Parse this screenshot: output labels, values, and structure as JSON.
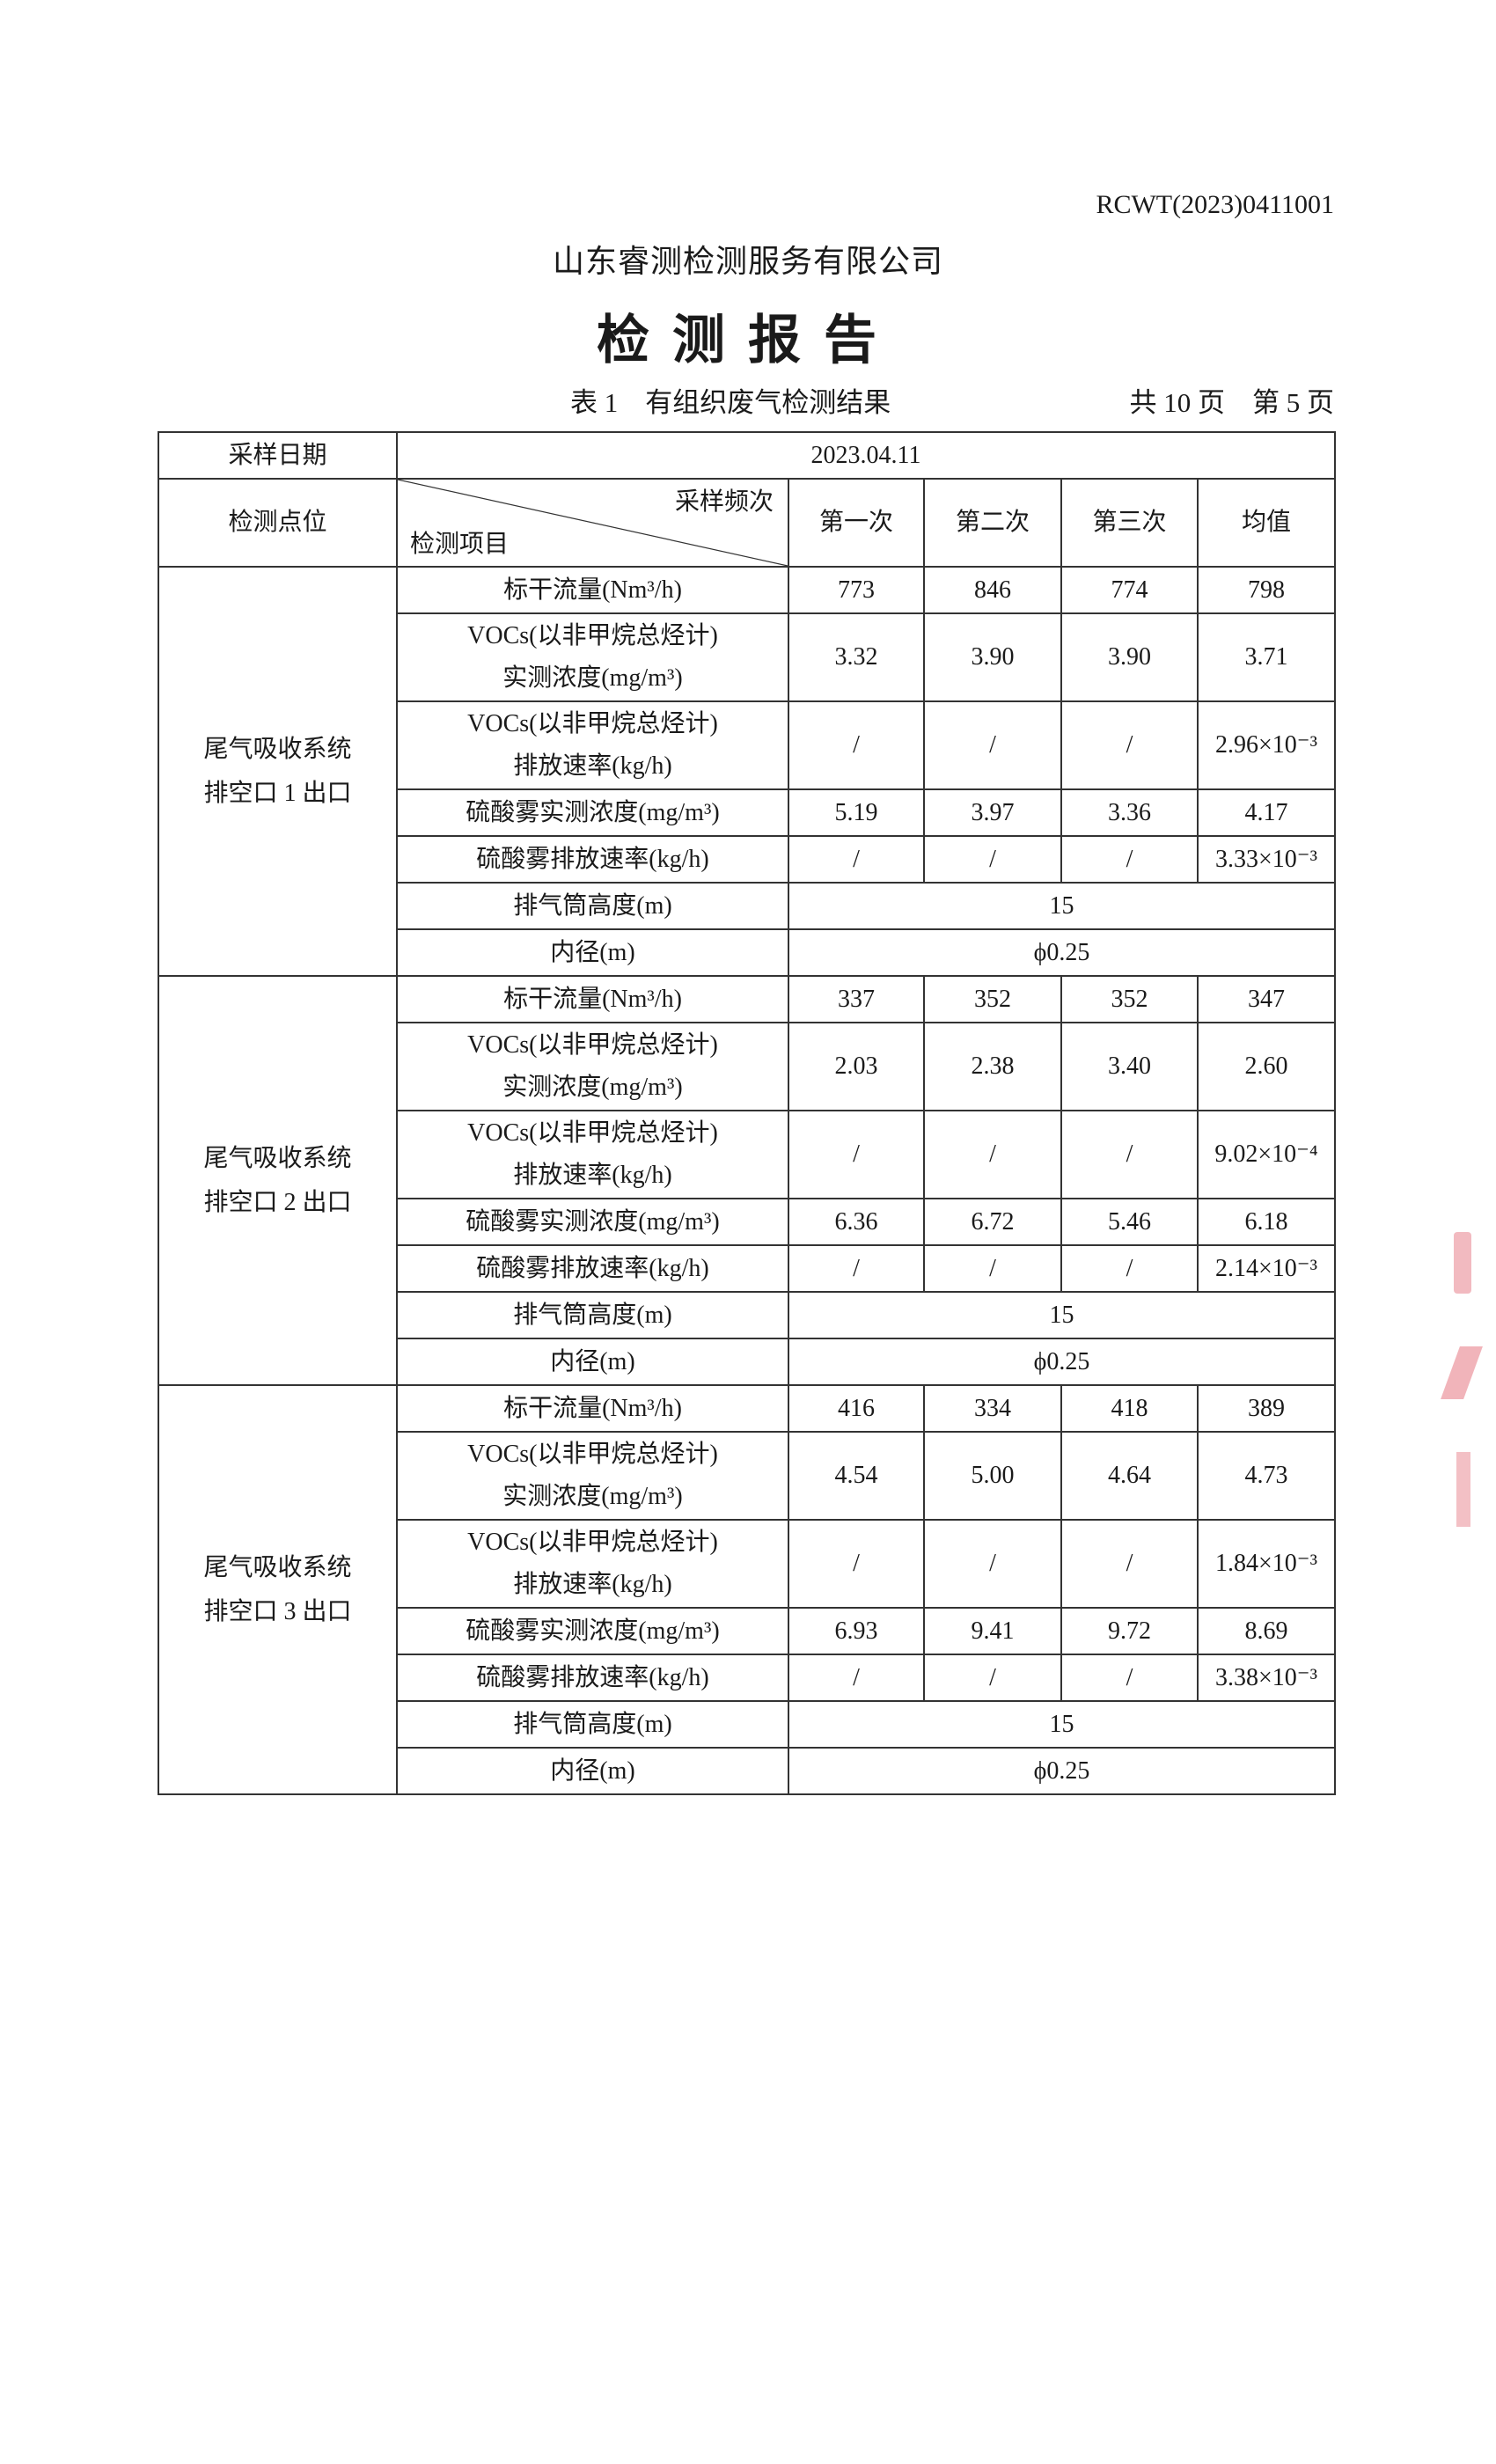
{
  "header": {
    "report_no": "RCWT(2023)0411001",
    "company": "山东睿测检测服务有限公司",
    "title": "检测报告",
    "caption": "表 1　有组织废气检测结果",
    "pages": "共 10 页　第 5 页"
  },
  "table": {
    "date_label": "采样日期",
    "date_value": "2023.04.11",
    "point_label": "检测点位",
    "freq_label": "采样频次",
    "item_label": "检测项目",
    "columns": [
      "第一次",
      "第二次",
      "第三次",
      "均值"
    ],
    "blocks": [
      {
        "point": [
          "尾气吸收系统",
          "排空口 1 出口"
        ],
        "rows": [
          {
            "item": [
              "标干流量(Nm³/h)"
            ],
            "values": [
              "773",
              "846",
              "774",
              "798"
            ]
          },
          {
            "item": [
              "VOCs(以非甲烷总烃计)",
              "实测浓度(mg/m³)"
            ],
            "values": [
              "3.32",
              "3.90",
              "3.90",
              "3.71"
            ]
          },
          {
            "item": [
              "VOCs(以非甲烷总烃计)",
              "排放速率(kg/h)"
            ],
            "values": [
              "/",
              "/",
              "/",
              "2.96×10⁻³"
            ]
          },
          {
            "item": [
              "硫酸雾实测浓度(mg/m³)"
            ],
            "values": [
              "5.19",
              "3.97",
              "3.36",
              "4.17"
            ]
          },
          {
            "item": [
              "硫酸雾排放速率(kg/h)"
            ],
            "values": [
              "/",
              "/",
              "/",
              "3.33×10⁻³"
            ]
          },
          {
            "item": [
              "排气筒高度(m)"
            ],
            "merged": "15"
          },
          {
            "item": [
              "内径(m)"
            ],
            "merged": "ϕ0.25"
          }
        ]
      },
      {
        "point": [
          "尾气吸收系统",
          "排空口 2 出口"
        ],
        "rows": [
          {
            "item": [
              "标干流量(Nm³/h)"
            ],
            "values": [
              "337",
              "352",
              "352",
              "347"
            ]
          },
          {
            "item": [
              "VOCs(以非甲烷总烃计)",
              "实测浓度(mg/m³)"
            ],
            "values": [
              "2.03",
              "2.38",
              "3.40",
              "2.60"
            ]
          },
          {
            "item": [
              "VOCs(以非甲烷总烃计)",
              "排放速率(kg/h)"
            ],
            "values": [
              "/",
              "/",
              "/",
              "9.02×10⁻⁴"
            ]
          },
          {
            "item": [
              "硫酸雾实测浓度(mg/m³)"
            ],
            "values": [
              "6.36",
              "6.72",
              "5.46",
              "6.18"
            ]
          },
          {
            "item": [
              "硫酸雾排放速率(kg/h)"
            ],
            "values": [
              "/",
              "/",
              "/",
              "2.14×10⁻³"
            ]
          },
          {
            "item": [
              "排气筒高度(m)"
            ],
            "merged": "15"
          },
          {
            "item": [
              "内径(m)"
            ],
            "merged": "ϕ0.25"
          }
        ]
      },
      {
        "point": [
          "尾气吸收系统",
          "排空口 3 出口"
        ],
        "rows": [
          {
            "item": [
              "标干流量(Nm³/h)"
            ],
            "values": [
              "416",
              "334",
              "418",
              "389"
            ]
          },
          {
            "item": [
              "VOCs(以非甲烷总烃计)",
              "实测浓度(mg/m³)"
            ],
            "values": [
              "4.54",
              "5.00",
              "4.64",
              "4.73"
            ]
          },
          {
            "item": [
              "VOCs(以非甲烷总烃计)",
              "排放速率(kg/h)"
            ],
            "values": [
              "/",
              "/",
              "/",
              "1.84×10⁻³"
            ]
          },
          {
            "item": [
              "硫酸雾实测浓度(mg/m³)"
            ],
            "values": [
              "6.93",
              "9.41",
              "9.72",
              "8.69"
            ]
          },
          {
            "item": [
              "硫酸雾排放速率(kg/h)"
            ],
            "values": [
              "/",
              "/",
              "/",
              "3.38×10⁻³"
            ]
          },
          {
            "item": [
              "排气筒高度(m)"
            ],
            "merged": "15"
          },
          {
            "item": [
              "内径(m)"
            ],
            "merged": "ϕ0.25"
          }
        ]
      }
    ]
  },
  "colors": {
    "stamp": "#e8828c",
    "ink": "#1a1a1a"
  }
}
